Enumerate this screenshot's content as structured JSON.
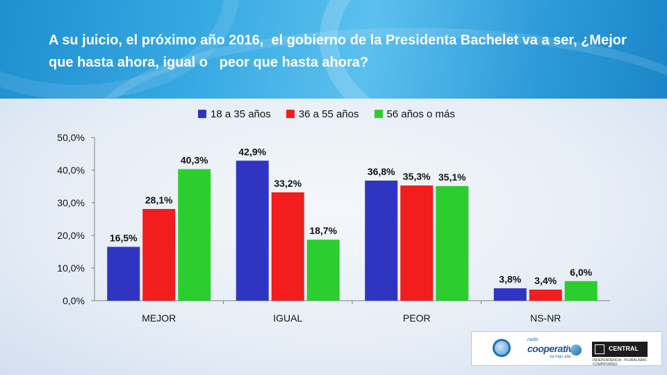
{
  "title": "A su juicio, el próximo año 2016,  el gobierno de la Presidenta Bachelet va a ser, ¿Mejor que hasta ahora, igual o   peor que hasta ahora?",
  "colors": {
    "series1": "#2f35c1",
    "series2": "#f21d1d",
    "series3": "#2ccd2e",
    "header": "#2d9bd9"
  },
  "chart_data": {
    "type": "bar",
    "categories": [
      "MEJOR",
      "IGUAL",
      "PEOR",
      "NS-NR"
    ],
    "series": [
      {
        "name": "18 a 35 años",
        "values": [
          16.5,
          42.9,
          36.8,
          3.8
        ],
        "labels": [
          "16,5%",
          "42,9%",
          "36,8%",
          "3,8%"
        ]
      },
      {
        "name": "36 a 55 años",
        "values": [
          28.1,
          33.2,
          35.3,
          3.4
        ],
        "labels": [
          "28,1%",
          "33,2%",
          "35,3%",
          "3,4%"
        ]
      },
      {
        "name": "56 años o más",
        "values": [
          40.3,
          18.7,
          35.1,
          6.0
        ],
        "labels": [
          "40,3%",
          "18,7%",
          "35,1%",
          "6,0%"
        ]
      }
    ],
    "yticks": [
      "0,0%",
      "10,0%",
      "20,0%",
      "30,0%",
      "40,0%",
      "50,0%"
    ],
    "ylim": [
      0,
      50
    ],
    "grid": false,
    "legend": "top"
  },
  "logos": {
    "cooperativa_small": "radio",
    "cooperativa": "cooperativa",
    "cooperativa_tag": "va más allá",
    "ucentral": "CENTRAL",
    "ucentral_sub": "INDEPENDENCIA · PLURALISMO · COMPROMISO"
  }
}
